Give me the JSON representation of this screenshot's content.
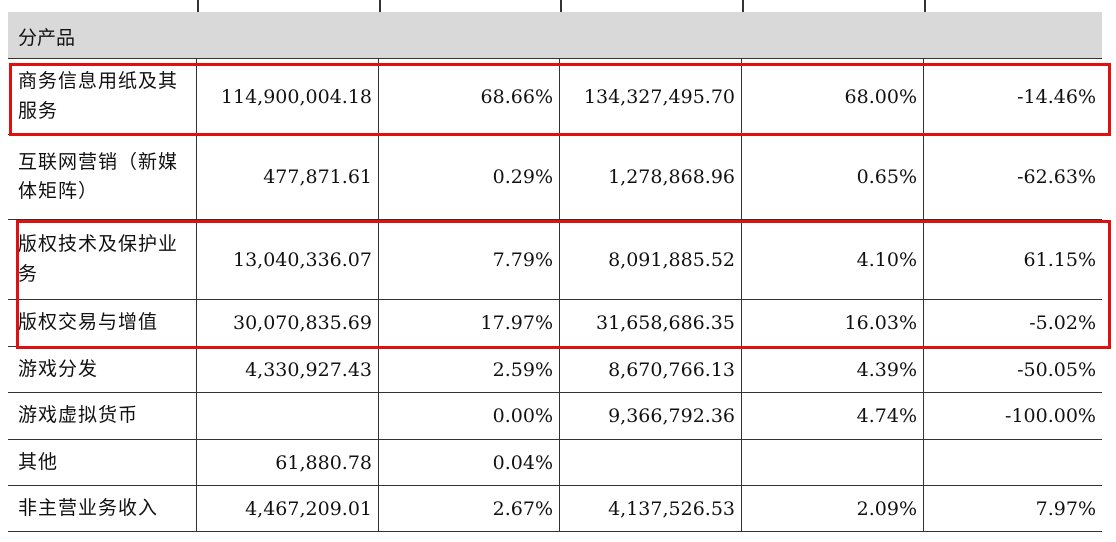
{
  "section_label": "分产品",
  "rows": [
    {
      "name": "商务信息用纸及其服务",
      "v1": "114,900,004.18",
      "p1": "68.66%",
      "v2": "134,327,495.70",
      "p2": "68.00%",
      "chg": "-14.46%"
    },
    {
      "name": "互联网营销（新媒体矩阵）",
      "v1": "477,871.61",
      "p1": "0.29%",
      "v2": "1,278,868.96",
      "p2": "0.65%",
      "chg": "-62.63%"
    },
    {
      "name": "版权技术及保护业务",
      "v1": "13,040,336.07",
      "p1": "7.79%",
      "v2": "8,091,885.52",
      "p2": "4.10%",
      "chg": "61.15%"
    },
    {
      "name": "版权交易与增值",
      "v1": "30,070,835.69",
      "p1": "17.97%",
      "v2": "31,658,686.35",
      "p2": "16.03%",
      "chg": "-5.02%"
    },
    {
      "name": "游戏分发",
      "v1": "4,330,927.43",
      "p1": "2.59%",
      "v2": "8,670,766.13",
      "p2": "4.39%",
      "chg": "-50.05%"
    },
    {
      "name": "游戏虚拟货币",
      "v1": "",
      "p1": "0.00%",
      "v2": "9,366,792.36",
      "p2": "4.74%",
      "chg": "-100.00%"
    },
    {
      "name": "其他",
      "v1": "61,880.78",
      "p1": "0.04%",
      "v2": "",
      "p2": "",
      "chg": ""
    },
    {
      "name": "非主营业务收入",
      "v1": "4,467,209.01",
      "p1": "2.67%",
      "v2": "4,137,526.53",
      "p2": "2.09%",
      "chg": "7.97%"
    }
  ],
  "highlight_color": "#e01010"
}
